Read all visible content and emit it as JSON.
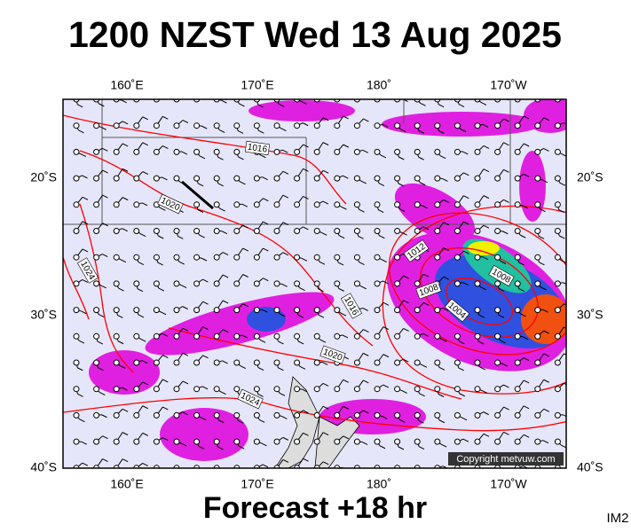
{
  "header": {
    "title": "1200 NZST Wed 13 Aug 2025"
  },
  "map": {
    "longitude_labels_top": [
      "160˚E",
      "170˚E",
      "180˚",
      "170˚W"
    ],
    "longitude_labels_bottom": [
      "160˚E",
      "170˚E",
      "180˚",
      "170˚W"
    ],
    "latitude_labels_left": [
      "20˚S",
      "30˚S",
      "40˚S"
    ],
    "latitude_labels_right": [
      "20˚S",
      "30˚S",
      "40˚S"
    ],
    "isobar_labels": [
      "1016",
      "1020",
      "1024",
      "1012",
      "1008",
      "1008",
      "1004",
      "1016",
      "1020",
      "1024"
    ],
    "copyright": "Copyright metvuw.com"
  },
  "footer": {
    "forecast": "Forecast +18 hr",
    "image_id": "IM2"
  }
}
